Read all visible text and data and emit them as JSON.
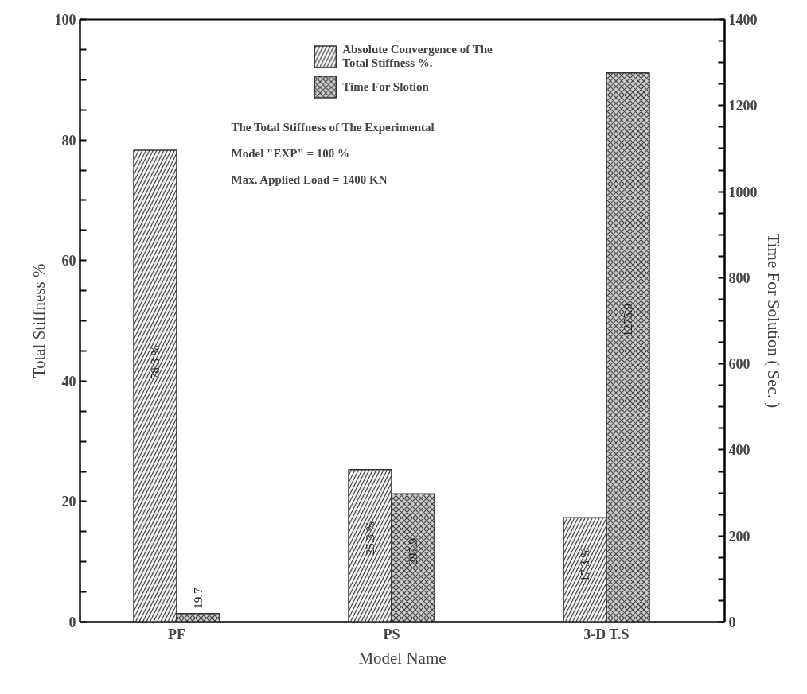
{
  "chart_data": {
    "type": "bar",
    "categories": [
      "PF",
      "PS",
      "3-D T.S"
    ],
    "xlabel": "Model Name",
    "ylabel": "Total Stiffness %",
    "y2label": "Time For Solution ( Sec. )",
    "series": [
      {
        "name": "Absolute Convergence of The Total Stiffness %.",
        "color": "#f2f2f2",
        "values": [
          78.3,
          25.3,
          17.3
        ],
        "value_labels": [
          "78.3 %",
          "25.3 %",
          "17.3 %"
        ]
      },
      {
        "name": "Time For Slotion",
        "color": "#cccccc",
        "values": [
          19.7,
          297.9,
          1275.9
        ],
        "value_labels": [
          "19.7",
          "297.9",
          "1275.9"
        ],
        "axis": "y2"
      }
    ],
    "ylim": [
      0,
      100
    ],
    "yticks": [
      0,
      {
        "value": 5,
        "label": null
      },
      {
        "value": 10,
        "label": null
      },
      {
        "value": 15,
        "label": null
      },
      20,
      {
        "value": 25,
        "label": null
      },
      {
        "value": 30,
        "label": null
      },
      {
        "value": 35,
        "label": null
      },
      40,
      {
        "value": 45,
        "label": null
      },
      {
        "value": 50,
        "label": null
      },
      {
        "value": 55,
        "label": null
      },
      60,
      {
        "value": 65,
        "label": null
      },
      {
        "value": 70,
        "label": null
      },
      {
        "value": 75,
        "label": null
      },
      80,
      {
        "value": 85,
        "label": null
      },
      {
        "value": 90,
        "label": null
      },
      {
        "value": 95,
        "label": null
      },
      100
    ],
    "y2lim": [
      0,
      1400
    ],
    "y2ticks": [
      0,
      {
        "value": 50,
        "label": null
      },
      {
        "value": 100,
        "label": null
      },
      {
        "value": 150,
        "label": null
      },
      200,
      {
        "value": 250,
        "label": null
      },
      {
        "value": 300,
        "label": null
      },
      {
        "value": 350,
        "label": null
      },
      400,
      {
        "value": 450,
        "label": null
      },
      {
        "value": 500,
        "label": null
      },
      {
        "value": 550,
        "label": null
      },
      600,
      {
        "value": 650,
        "label": null
      },
      {
        "value": 700,
        "label": null
      },
      {
        "value": 750,
        "label": null
      },
      800,
      {
        "value": 850,
        "label": null
      },
      {
        "value": 900,
        "label": null
      },
      {
        "value": 950,
        "label": null
      },
      1000,
      {
        "value": 1050,
        "label": null
      },
      {
        "value": 1100,
        "label": null
      },
      {
        "value": 1150,
        "label": null
      },
      1200,
      {
        "value": 1250,
        "label": null
      },
      {
        "value": 1300,
        "label": null
      },
      {
        "value": 1350,
        "label": null
      },
      1400
    ],
    "annotations": [
      "The Total Stiffness of The Experimental",
      "Model \"EXP\" = 100 %",
      "Max. Applied Load = 1400 KN"
    ],
    "legend": "top",
    "grid": false
  }
}
